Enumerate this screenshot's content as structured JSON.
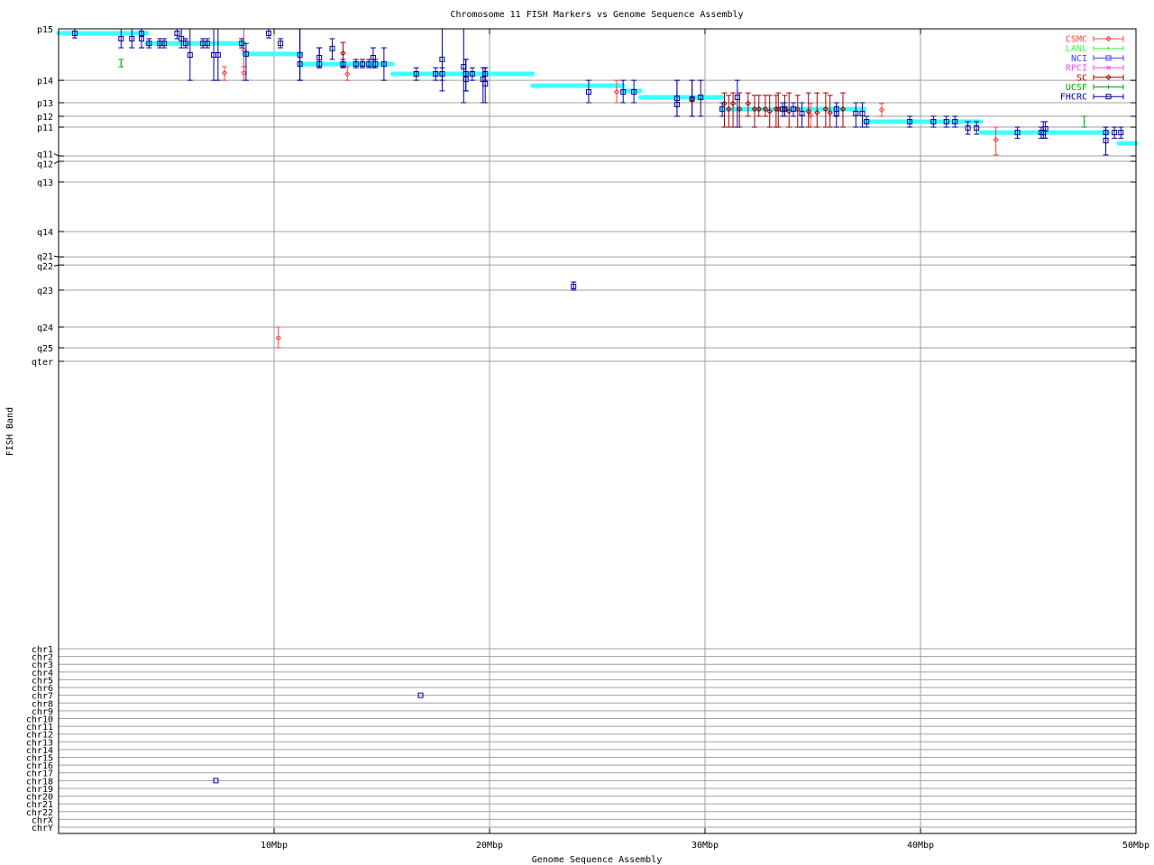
{
  "chart_data": {
    "type": "scatter",
    "title": "Chromosome 11 FISH Markers vs Genome Sequence Assembly",
    "xlabel": "Genome Sequence Assembly",
    "ylabel": "FISH Band",
    "xlim": [
      0,
      50
    ],
    "x_unit": "Mbp",
    "x_ticks": [
      {
        "v": 10,
        "label": "10Mbp"
      },
      {
        "v": 20,
        "label": "20Mbp"
      },
      {
        "v": 30,
        "label": "30Mbp"
      },
      {
        "v": 40,
        "label": "40Mbp"
      },
      {
        "v": 50,
        "label": "50Mbp"
      }
    ],
    "grid": true,
    "legend_position": "top-right",
    "chr11_ylim": [
      0,
      135
    ],
    "band_ticks": [
      {
        "label": "p15",
        "v": 0
      },
      {
        "label": "p14",
        "v": 20.9
      },
      {
        "label": "p13",
        "v": 30.0
      },
      {
        "label": "p12",
        "v": 35.5
      },
      {
        "label": "p11",
        "v": 39.9
      },
      {
        "label": "q11",
        "v": 51.6
      },
      {
        "label": "q12",
        "v": 53.8
      },
      {
        "label": "q13",
        "v": 62.2
      },
      {
        "label": "q14",
        "v": 82.3
      },
      {
        "label": "q21",
        "v": 92.6
      },
      {
        "label": "q22",
        "v": 95.9
      },
      {
        "label": "q23",
        "v": 106.1
      },
      {
        "label": "q24",
        "v": 121.1
      },
      {
        "label": "q25",
        "v": 129.5
      },
      {
        "label": "qter",
        "v": 135
      }
    ],
    "other_chromosomes": [
      "chr1",
      "chr2",
      "chr3",
      "chr4",
      "chr5",
      "chr6",
      "chr7",
      "chr8",
      "chr9",
      "chr10",
      "chr11",
      "chr12",
      "chr13",
      "chr14",
      "chr15",
      "chr16",
      "chr17",
      "chr18",
      "chr19",
      "chr20",
      "chr21",
      "chr22",
      "chrX",
      "chrY"
    ],
    "fit_segments": [
      [
        0,
        4.1,
        1.8
      ],
      [
        4.1,
        8.6,
        5.9
      ],
      [
        8.6,
        11.2,
        10.2
      ],
      [
        11.2,
        15.5,
        14.3
      ],
      [
        15.5,
        22.0,
        18.3
      ],
      [
        22.0,
        26.2,
        23.1
      ],
      [
        26.2,
        27.0,
        25.2
      ],
      [
        27.0,
        30.8,
        27.8
      ],
      [
        30.8,
        37.4,
        32.6
      ],
      [
        37.4,
        42.8,
        37.7
      ],
      [
        42.8,
        48.7,
        42.1
      ],
      [
        49.2,
        50,
        46.5
      ]
    ],
    "fit_color": "#40ffff",
    "series": [
      {
        "name": "CSMC",
        "color": "#ff4040",
        "marker": "diamond",
        "points": [
          [
            7.7,
            17.9,
            15.4,
            20.9
          ],
          [
            8.6,
            17.9,
            15.4,
            20.9
          ],
          [
            8.6,
            8.8,
            0,
            15.4
          ],
          [
            13.4,
            18.3,
            15.4,
            20.9
          ],
          [
            25.9,
            25.6,
            20.9,
            30.0
          ],
          [
            34.9,
            35.1,
            30.3,
            39.9
          ],
          [
            38.2,
            32.9,
            30.3,
            35.5
          ],
          [
            43.5,
            45.0,
            39.9,
            51.2
          ],
          [
            10.2,
            125.5,
            121.1,
            129.5
          ]
        ]
      },
      {
        "name": "LANL",
        "color": "#40ff40",
        "marker": "tick",
        "points": []
      },
      {
        "name": "NCI",
        "color": "#4040ff",
        "marker": "square",
        "points": []
      },
      {
        "name": "RPCI",
        "color": "#ff40ff",
        "marker": "cross",
        "points": []
      },
      {
        "name": "SC",
        "color": "#a00000",
        "marker": "diamond",
        "points": [
          [
            13.2,
            9.9,
            5.5,
            15.4
          ],
          [
            29.4,
            28.5,
            20.9,
            35.5
          ],
          [
            30.9,
            30.3,
            26.0,
            39.9
          ],
          [
            31.1,
            32.6,
            27.0,
            39.9
          ],
          [
            31.3,
            30.3,
            26.0,
            39.9
          ],
          [
            31.6,
            32.6,
            26.0,
            39.9
          ],
          [
            32.0,
            30.3,
            26.0,
            35.5
          ],
          [
            32.3,
            32.6,
            27.0,
            39.9
          ],
          [
            32.5,
            32.6,
            27.0,
            35.5
          ],
          [
            32.8,
            32.6,
            27.0,
            35.5
          ],
          [
            33.0,
            33.5,
            27.0,
            39.9
          ],
          [
            33.3,
            32.6,
            27.0,
            39.9
          ],
          [
            33.4,
            32.6,
            26.0,
            39.9
          ],
          [
            33.7,
            32.6,
            27.0,
            35.5
          ],
          [
            33.9,
            33.5,
            26.0,
            39.9
          ],
          [
            34.3,
            32.6,
            27.0,
            39.9
          ],
          [
            34.8,
            33.5,
            26.0,
            39.9
          ],
          [
            35.2,
            34.0,
            26.0,
            39.9
          ],
          [
            35.6,
            32.6,
            26.0,
            39.9
          ],
          [
            35.8,
            34.0,
            27.0,
            39.9
          ],
          [
            36.4,
            32.6,
            26.0,
            39.9
          ]
        ]
      },
      {
        "name": "UCSF",
        "color": "#00a000",
        "marker": "tick",
        "points": [
          [
            2.9,
            13.9,
            12.4,
            15.4
          ],
          [
            47.6,
            37.7,
            35.5,
            39.9
          ]
        ]
      },
      {
        "name": "FHCRC",
        "color": "#0000a0",
        "marker": "square",
        "points": [
          [
            0.75,
            1.8,
            0,
            3.7
          ],
          [
            2.9,
            4.0,
            0,
            7.7
          ],
          [
            3.4,
            4.0,
            0,
            7.7
          ],
          [
            3.85,
            1.8,
            0,
            7.7
          ],
          [
            3.85,
            4.0,
            0,
            7.7
          ],
          [
            4.2,
            5.9,
            4.0,
            7.7
          ],
          [
            4.7,
            5.9,
            4.0,
            7.7
          ],
          [
            4.9,
            5.9,
            4.0,
            7.7
          ],
          [
            5.5,
            1.8,
            0,
            4.0
          ],
          [
            5.7,
            4.0,
            0,
            7.7
          ],
          [
            5.9,
            5.9,
            4.0,
            7.7
          ],
          [
            6.1,
            10.6,
            0,
            20.9
          ],
          [
            6.7,
            5.9,
            4.0,
            7.7
          ],
          [
            6.9,
            5.9,
            4.0,
            7.7
          ],
          [
            7.2,
            10.6,
            0,
            20.9
          ],
          [
            7.4,
            10.6,
            0,
            20.9
          ],
          [
            8.5,
            5.9,
            4.0,
            7.7
          ],
          [
            8.7,
            10.2,
            5.9,
            20.9
          ],
          [
            9.75,
            1.8,
            0,
            3.7
          ],
          [
            10.3,
            5.9,
            4.0,
            7.7
          ],
          [
            11.2,
            10.6,
            0,
            20.9
          ],
          [
            11.2,
            14.3,
            0,
            20.9
          ],
          [
            12.1,
            11.7,
            7.7,
            15.8
          ],
          [
            12.1,
            14.3,
            7.7,
            15.8
          ],
          [
            12.7,
            8.0,
            4.0,
            12.4
          ],
          [
            13.2,
            14.3,
            12.4,
            15.8
          ],
          [
            13.8,
            14.3,
            12.4,
            15.8
          ],
          [
            14.1,
            14.3,
            12.4,
            15.8
          ],
          [
            14.4,
            14.3,
            12.4,
            15.8
          ],
          [
            14.6,
            11.7,
            7.7,
            15.8
          ],
          [
            14.7,
            14.3,
            12.4,
            15.8
          ],
          [
            15.1,
            14.3,
            7.7,
            20.9
          ],
          [
            16.6,
            18.3,
            15.8,
            20.9
          ],
          [
            17.5,
            18.3,
            15.8,
            20.9
          ],
          [
            17.8,
            12.4,
            0,
            25.2
          ],
          [
            17.8,
            18.3,
            15.8,
            20.9
          ],
          [
            18.8,
            15.4,
            0,
            30.0
          ],
          [
            18.9,
            18.3,
            12.4,
            25.2
          ],
          [
            18.9,
            20.5,
            12.4,
            25.2
          ],
          [
            19.2,
            18.3,
            15.8,
            20.9
          ],
          [
            19.7,
            20.5,
            15.8,
            30.0
          ],
          [
            19.8,
            22.3,
            15.8,
            30.0
          ],
          [
            19.8,
            18.3,
            15.8,
            20.9
          ],
          [
            24.6,
            25.6,
            20.9,
            30.0
          ],
          [
            26.2,
            25.6,
            20.9,
            30.0
          ],
          [
            26.7,
            25.6,
            20.9,
            30.0
          ],
          [
            28.7,
            28.2,
            20.9,
            35.5
          ],
          [
            28.7,
            30.7,
            20.9,
            35.5
          ],
          [
            29.4,
            28.5,
            20.9,
            35.5
          ],
          [
            29.8,
            27.8,
            20.9,
            35.5
          ],
          [
            30.8,
            32.6,
            30.0,
            35.5
          ],
          [
            31.5,
            27.8,
            20.9,
            39.9
          ],
          [
            33.6,
            32.6,
            30.0,
            35.5
          ],
          [
            33.7,
            32.6,
            30.0,
            35.5
          ],
          [
            34.1,
            32.6,
            30.0,
            35.5
          ],
          [
            34.5,
            34.4,
            30.0,
            39.9
          ],
          [
            36.1,
            32.6,
            30.0,
            35.5
          ],
          [
            36.1,
            34.4,
            30.0,
            39.9
          ],
          [
            37.0,
            34.4,
            30.0,
            39.9
          ],
          [
            37.3,
            34.4,
            30.0,
            39.9
          ],
          [
            37.5,
            37.7,
            35.5,
            39.9
          ],
          [
            39.5,
            37.7,
            35.5,
            39.9
          ],
          [
            40.6,
            37.7,
            35.5,
            39.9
          ],
          [
            41.2,
            37.7,
            35.5,
            39.9
          ],
          [
            41.6,
            37.7,
            35.5,
            39.9
          ],
          [
            42.2,
            40.3,
            37.7,
            42.8
          ],
          [
            42.6,
            40.3,
            37.7,
            42.8
          ],
          [
            44.5,
            42.1,
            39.9,
            44.4
          ],
          [
            45.6,
            42.1,
            39.9,
            44.4
          ],
          [
            45.7,
            42.1,
            37.7,
            44.4
          ],
          [
            45.8,
            40.6,
            37.7,
            44.4
          ],
          [
            48.6,
            42.1,
            39.9,
            44.4
          ],
          [
            48.6,
            45.4,
            39.9,
            51.2
          ],
          [
            49.0,
            42.1,
            39.9,
            44.4
          ],
          [
            49.3,
            42.1,
            39.9,
            44.4
          ],
          [
            23.9,
            104.6,
            102.8,
            106.1
          ]
        ],
        "other_chromosome_points": [
          [
            16.8,
            "chr7"
          ],
          [
            7.3,
            "chr18"
          ]
        ]
      }
    ]
  }
}
